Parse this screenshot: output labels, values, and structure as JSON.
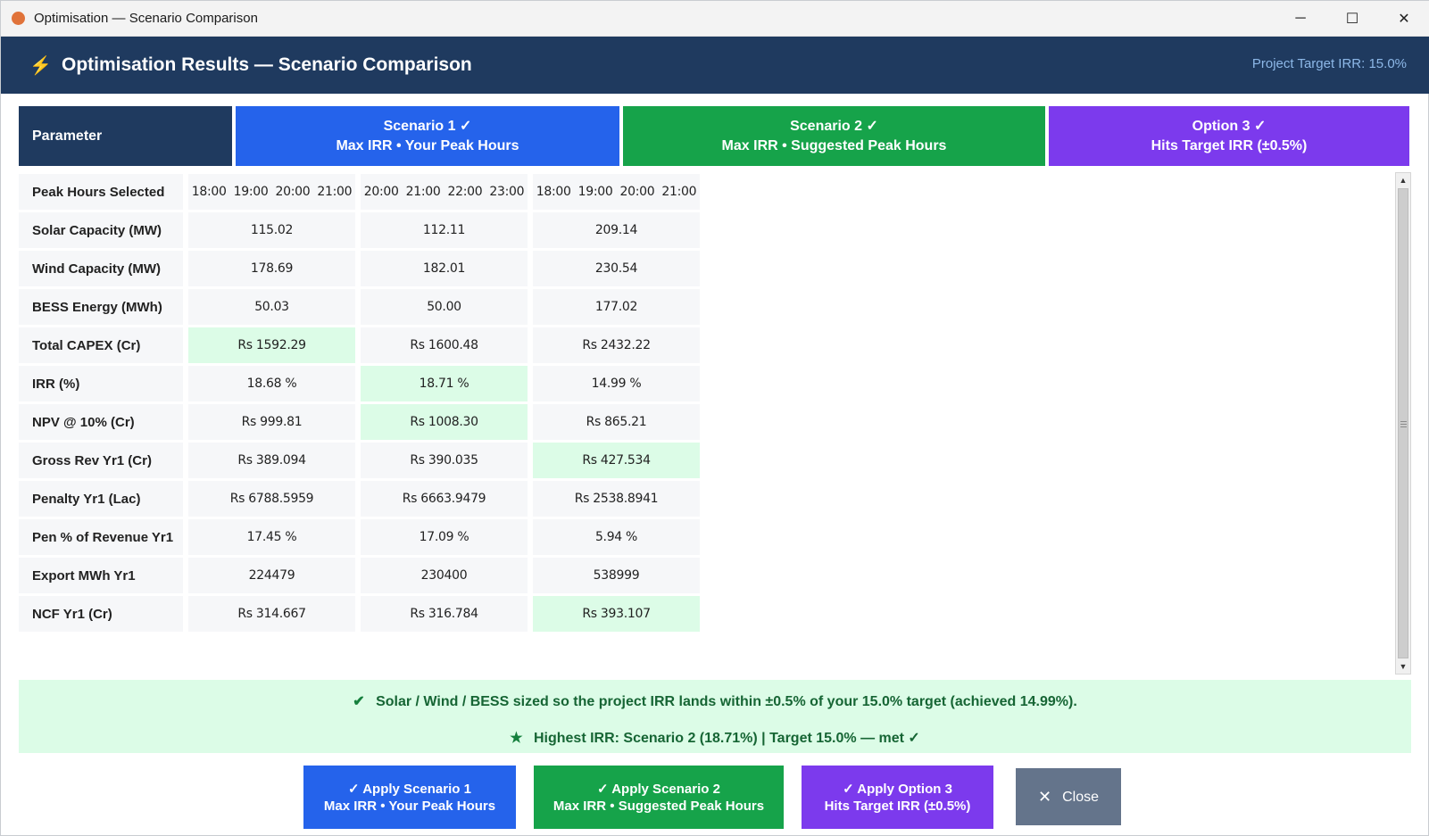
{
  "window": {
    "title": "Optimisation — Scenario Comparison",
    "minimize": "─",
    "maximize": "☐",
    "close": "✕"
  },
  "header": {
    "icon": "⚡",
    "title": "Optimisation Results — Scenario Comparison",
    "target_irr": "Project Target IRR: 15.0%"
  },
  "columns": {
    "parameter": "Parameter",
    "s1_line1": "Scenario 1  ✓",
    "s1_line2": "Max IRR • Your Peak Hours",
    "s2_line1": "Scenario 2  ✓",
    "s2_line2": "Max IRR • Suggested Peak Hours",
    "o3_line1": "Option 3  ✓",
    "o3_line2": "Hits Target IRR (±0.5%)"
  },
  "peak_hours": {
    "label": "Peak Hours Selected",
    "s1": [
      "18:00",
      "19:00",
      "20:00",
      "21:00"
    ],
    "s2": [
      "20:00",
      "21:00",
      "22:00",
      "23:00"
    ],
    "o3": [
      "18:00",
      "19:00",
      "20:00",
      "21:00"
    ]
  },
  "rows": [
    {
      "label": "Solar Capacity (MW)",
      "s1": "115.02",
      "s2": "112.11",
      "o3": "209.14",
      "best": ""
    },
    {
      "label": "Wind Capacity (MW)",
      "s1": "178.69",
      "s2": "182.01",
      "o3": "230.54",
      "best": ""
    },
    {
      "label": "BESS Energy (MWh)",
      "s1": "50.03",
      "s2": "50.00",
      "o3": "177.02",
      "best": ""
    },
    {
      "label": "Total CAPEX (Cr)",
      "s1": "Rs 1592.29",
      "s2": "Rs 1600.48",
      "o3": "Rs 2432.22",
      "best": "s1"
    },
    {
      "label": "IRR (%)",
      "s1": "18.68 %",
      "s2": "18.71 %",
      "o3": "14.99 %",
      "best": "s2"
    },
    {
      "label": "NPV @ 10% (Cr)",
      "s1": "Rs 999.81",
      "s2": "Rs 1008.30",
      "o3": "Rs 865.21",
      "best": "s2"
    },
    {
      "label": "Gross Rev Yr1 (Cr)",
      "s1": "Rs 389.094",
      "s2": "Rs 390.035",
      "o3": "Rs 427.534",
      "best": "o3"
    },
    {
      "label": "Penalty Yr1 (Lac)",
      "s1": "Rs 6788.5959",
      "s2": "Rs 6663.9479",
      "o3": "Rs 2538.8941",
      "best": ""
    },
    {
      "label": "Pen % of Revenue Yr1",
      "s1": "17.45 %",
      "s2": "17.09 %",
      "o3": "5.94 %",
      "best": ""
    },
    {
      "label": "Export MWh Yr1",
      "s1": "224479",
      "s2": "230400",
      "o3": "538999",
      "best": ""
    },
    {
      "label": "NCF Yr1 (Cr)",
      "s1": "Rs 314.667",
      "s2": "Rs 316.784",
      "o3": "Rs 393.107",
      "best": "o3"
    }
  ],
  "banner": {
    "check_icon": "✔",
    "line1": "Solar / Wind / BESS sized so the project IRR lands within ±0.5% of your 15.0% target (achieved 14.99%).",
    "star_icon": "★",
    "line2": "Highest IRR: Scenario 2 (18.71%)  |  Target 15.0%  — met ✓"
  },
  "buttons": {
    "apply1_line1": "✓  Apply Scenario 1",
    "apply1_line2": "Max IRR • Your Peak Hours",
    "apply2_line1": "✓  Apply Scenario 2",
    "apply2_line2": "Max IRR • Suggested Peak Hours",
    "apply3_line1": "✓  Apply Option 3",
    "apply3_line2": "Hits Target IRR (±0.5%)",
    "close_icon": "✕",
    "close_label": "Close"
  },
  "colors": {
    "header_bg": "#1f3a5f",
    "scenario1": "#2563eb",
    "scenario2": "#16a34a",
    "option3": "#7c3aed",
    "best_cell": "#dcfce7",
    "close_btn": "#64748b"
  }
}
